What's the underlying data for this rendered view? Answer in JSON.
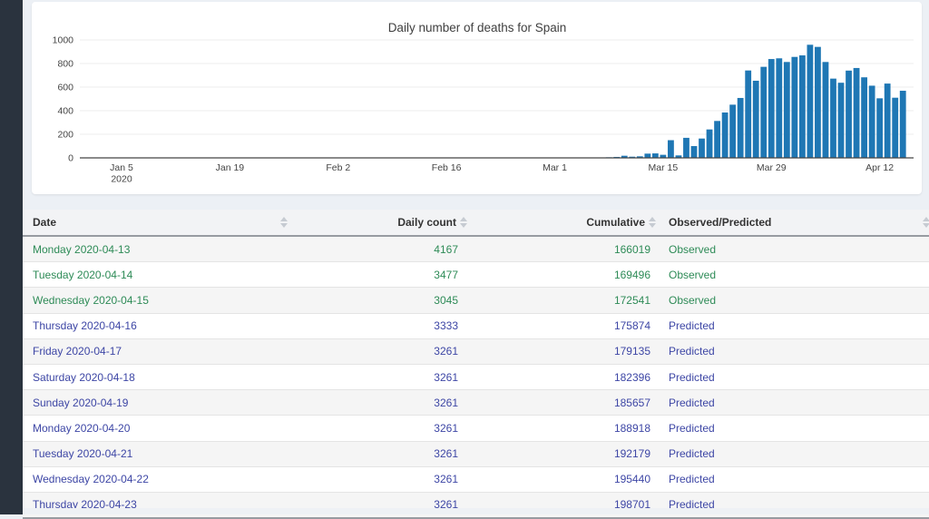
{
  "chart_data": {
    "type": "bar",
    "title": "Daily number of deaths for Spain",
    "bar_color": "#1f77b4",
    "axis_text_color": "#444444",
    "grid_color": "#ececec",
    "ylabel": "",
    "xlabel": "",
    "ylim": [
      0,
      1000
    ],
    "y_ticks": [
      0,
      200,
      400,
      600,
      800,
      1000
    ],
    "x_tick_labels": [
      "Jan 5",
      "Jan 19",
      "Feb 2",
      "Feb 16",
      "Mar 1",
      "Mar 15",
      "Mar 29",
      "Apr 12"
    ],
    "x_tick_day_offsets": [
      0,
      14,
      28,
      42,
      56,
      70,
      84,
      98
    ],
    "x_axis_start_date": "2020-01-05",
    "x_tick_year_label": "2020",
    "legend": "none",
    "grid": "horizontal",
    "dates": [
      "2020-03-04",
      "2020-03-05",
      "2020-03-06",
      "2020-03-07",
      "2020-03-08",
      "2020-03-09",
      "2020-03-10",
      "2020-03-11",
      "2020-03-12",
      "2020-03-13",
      "2020-03-14",
      "2020-03-15",
      "2020-03-16",
      "2020-03-17",
      "2020-03-18",
      "2020-03-19",
      "2020-03-20",
      "2020-03-21",
      "2020-03-22",
      "2020-03-23",
      "2020-03-24",
      "2020-03-25",
      "2020-03-26",
      "2020-03-27",
      "2020-03-28",
      "2020-03-29",
      "2020-03-30",
      "2020-03-31",
      "2020-04-01",
      "2020-04-02",
      "2020-04-03",
      "2020-04-04",
      "2020-04-05",
      "2020-04-06",
      "2020-04-07",
      "2020-04-08",
      "2020-04-09",
      "2020-04-10",
      "2020-04-11",
      "2020-04-12",
      "2020-04-13",
      "2020-04-14",
      "2020-04-15"
    ],
    "values": [
      2,
      2,
      3,
      3,
      5,
      8,
      18,
      10,
      13,
      36,
      38,
      26,
      150,
      21,
      170,
      100,
      164,
      241,
      313,
      385,
      451,
      508,
      741,
      654,
      772,
      838,
      844,
      813,
      856,
      869,
      959,
      941,
      813,
      672,
      637,
      740,
      762,
      683,
      612,
      505,
      630,
      510,
      569
    ]
  },
  "table": {
    "columns": [
      {
        "label": "Date",
        "align": "left",
        "sortable": true
      },
      {
        "label": "Daily count",
        "align": "right",
        "sortable": true
      },
      {
        "label": "Cumulative",
        "align": "right",
        "sortable": true
      },
      {
        "label": "Observed/Predicted",
        "align": "left",
        "sortable": true
      }
    ],
    "status_colors": {
      "Observed": "#2e8b57",
      "Predicted": "#3d46a5"
    },
    "rows": [
      {
        "date": "Monday 2020-04-13",
        "daily": "4167",
        "cumulative": "166019",
        "status": "Observed"
      },
      {
        "date": "Tuesday 2020-04-14",
        "daily": "3477",
        "cumulative": "169496",
        "status": "Observed"
      },
      {
        "date": "Wednesday 2020-04-15",
        "daily": "3045",
        "cumulative": "172541",
        "status": "Observed"
      },
      {
        "date": "Thursday 2020-04-16",
        "daily": "3333",
        "cumulative": "175874",
        "status": "Predicted"
      },
      {
        "date": "Friday 2020-04-17",
        "daily": "3261",
        "cumulative": "179135",
        "status": "Predicted"
      },
      {
        "date": "Saturday 2020-04-18",
        "daily": "3261",
        "cumulative": "182396",
        "status": "Predicted"
      },
      {
        "date": "Sunday 2020-04-19",
        "daily": "3261",
        "cumulative": "185657",
        "status": "Predicted"
      },
      {
        "date": "Monday 2020-04-20",
        "daily": "3261",
        "cumulative": "188918",
        "status": "Predicted"
      },
      {
        "date": "Tuesday 2020-04-21",
        "daily": "3261",
        "cumulative": "192179",
        "status": "Predicted"
      },
      {
        "date": "Wednesday 2020-04-22",
        "daily": "3261",
        "cumulative": "195440",
        "status": "Predicted"
      },
      {
        "date": "Thursday 2020-04-23",
        "daily": "3261",
        "cumulative": "198701",
        "status": "Predicted"
      }
    ]
  }
}
